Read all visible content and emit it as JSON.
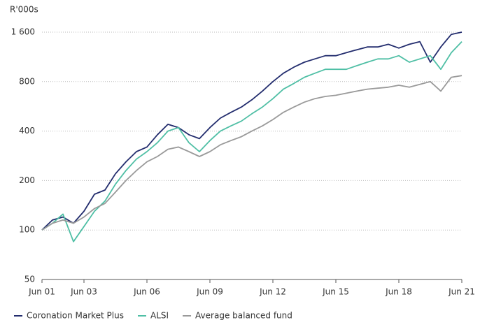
{
  "chart_data": {
    "type": "line",
    "y_label": "R'000s",
    "log_scale": true,
    "grid": true,
    "legend": "bottom",
    "x": [
      2001.5,
      2002,
      2002.5,
      2003,
      2003.5,
      2004,
      2004.5,
      2005,
      2005.5,
      2006,
      2006.5,
      2007,
      2007.5,
      2008,
      2008.5,
      2009,
      2009.5,
      2010,
      2010.5,
      2011,
      2011.5,
      2012,
      2012.5,
      2013,
      2013.5,
      2014,
      2014.5,
      2015,
      2015.5,
      2016,
      2016.5,
      2017,
      2017.5,
      2018,
      2018.5,
      2019,
      2019.5,
      2020,
      2020.5,
      2021,
      2021.5
    ],
    "series": [
      {
        "name": "Coronation Market Plus",
        "color": "#232d6e",
        "values": [
          100,
          115,
          120,
          110,
          130,
          165,
          175,
          220,
          260,
          300,
          320,
          380,
          440,
          420,
          380,
          360,
          420,
          480,
          520,
          560,
          620,
          700,
          800,
          900,
          980,
          1050,
          1100,
          1150,
          1150,
          1200,
          1250,
          1300,
          1300,
          1350,
          1280,
          1350,
          1400,
          1050,
          1300,
          1550,
          1600
        ]
      },
      {
        "name": "ALSI",
        "color": "#4fbfa5",
        "values": [
          100,
          110,
          125,
          85,
          105,
          130,
          150,
          190,
          230,
          270,
          300,
          340,
          400,
          420,
          340,
          300,
          350,
          400,
          430,
          460,
          510,
          560,
          630,
          720,
          780,
          850,
          900,
          950,
          950,
          950,
          1000,
          1050,
          1100,
          1100,
          1150,
          1050,
          1100,
          1150,
          950,
          1200,
          1400
        ]
      },
      {
        "name": "Average balanced fund",
        "color": "#9a9a9a",
        "values": [
          100,
          110,
          115,
          110,
          120,
          135,
          145,
          170,
          200,
          230,
          260,
          280,
          310,
          320,
          300,
          280,
          300,
          330,
          350,
          370,
          400,
          430,
          470,
          520,
          560,
          600,
          630,
          650,
          660,
          680,
          700,
          720,
          730,
          740,
          760,
          740,
          770,
          800,
          700,
          850,
          870
        ]
      }
    ],
    "xlim": [
      2001.5,
      2021.5
    ],
    "xticks": [
      {
        "value": 2001.5,
        "label": "Jun 01"
      },
      {
        "value": 2003.5,
        "label": "Jun 03"
      },
      {
        "value": 2006.5,
        "label": "Jun 06"
      },
      {
        "value": 2009.5,
        "label": "Jun 09"
      },
      {
        "value": 2012.5,
        "label": "Jun 12"
      },
      {
        "value": 2015.5,
        "label": "Jun 15"
      },
      {
        "value": 2018.5,
        "label": "Jun 18"
      },
      {
        "value": 2021.5,
        "label": "Jun 21"
      }
    ],
    "ylim": [
      50,
      1600
    ],
    "yticks": [
      50,
      100,
      200,
      400,
      800,
      {
        "value": 1600,
        "label": "1 600"
      }
    ]
  }
}
